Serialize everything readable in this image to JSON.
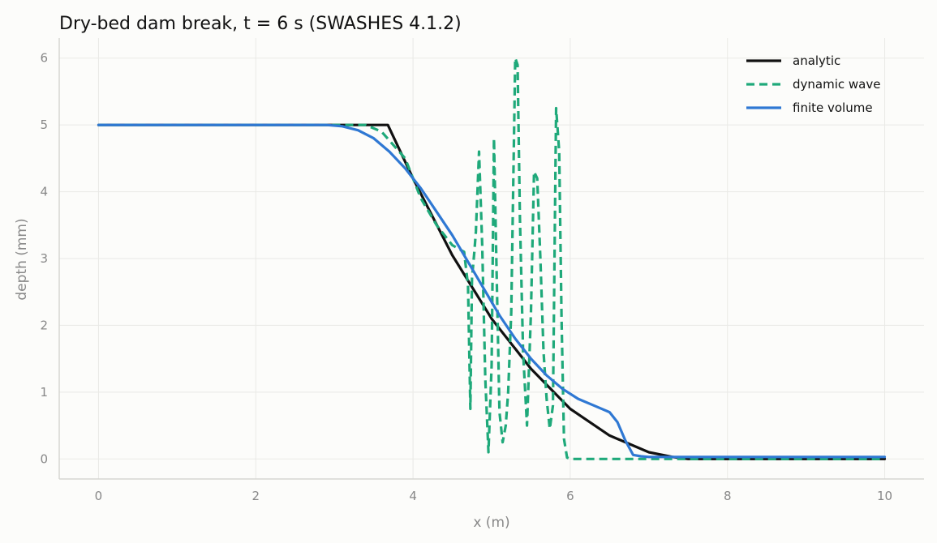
{
  "chart_data": {
    "type": "line",
    "title": "Dry-bed dam break, t = 6 s (SWASHES 4.1.2)",
    "xlabel": "x (m)",
    "ylabel": "depth (mm)",
    "xlim": [
      -0.5,
      10.5
    ],
    "ylim": [
      -0.3,
      6.3
    ],
    "xticks": [
      "0",
      "2",
      "4",
      "6",
      "8",
      "10"
    ],
    "yticks": [
      "0",
      "1",
      "2",
      "3",
      "4",
      "5",
      "6"
    ],
    "grid": true,
    "legend_position": "top-right",
    "colors": {
      "analytic": "#111111",
      "dynamic": "#1fa97a",
      "fv": "#2f78d3",
      "grid": "#e9e9e6",
      "axis": "#d6d6d2"
    },
    "series": [
      {
        "name": "analytic",
        "style": "solid",
        "x": [
          0,
          3.0,
          3.68,
          4.0,
          4.5,
          5.0,
          5.5,
          6.0,
          6.5,
          7.0,
          7.3,
          7.5,
          10
        ],
        "y": [
          5,
          5,
          5,
          4.2,
          3.05,
          2.1,
          1.35,
          0.75,
          0.35,
          0.1,
          0.03,
          0.0,
          0.0
        ]
      },
      {
        "name": "dynamic wave",
        "style": "dashed",
        "x": [
          0,
          3.0,
          3.4,
          3.6,
          3.75,
          3.9,
          4.1,
          4.3,
          4.5,
          4.65,
          4.7,
          4.73,
          4.75,
          4.78,
          4.8,
          4.84,
          4.88,
          4.92,
          4.96,
          5.0,
          5.03,
          5.06,
          5.1,
          5.14,
          5.18,
          5.21,
          5.25,
          5.3,
          5.33,
          5.36,
          5.4,
          5.45,
          5.5,
          5.54,
          5.58,
          5.62,
          5.66,
          5.7,
          5.74,
          5.78,
          5.82,
          5.86,
          5.89,
          5.92,
          5.96,
          6.0,
          10
        ],
        "y": [
          5,
          5,
          5,
          4.9,
          4.7,
          4.5,
          3.9,
          3.5,
          3.2,
          3.1,
          2.6,
          0.75,
          2.7,
          3.1,
          3.4,
          4.6,
          3.2,
          1.2,
          0.1,
          1.4,
          4.8,
          3.0,
          0.7,
          0.25,
          0.5,
          1.0,
          2.2,
          6.0,
          5.9,
          3.6,
          1.6,
          0.5,
          2.2,
          4.3,
          4.2,
          3.0,
          1.6,
          0.9,
          0.45,
          0.8,
          5.25,
          4.6,
          2.1,
          0.3,
          0.02,
          0.0,
          0.0
        ]
      },
      {
        "name": "finite volume",
        "style": "solid",
        "x": [
          0,
          2.9,
          3.1,
          3.3,
          3.5,
          3.7,
          3.9,
          4.1,
          4.3,
          4.5,
          4.7,
          4.9,
          5.1,
          5.3,
          5.5,
          5.7,
          5.9,
          6.1,
          6.3,
          6.5,
          6.6,
          6.7,
          6.8,
          6.9,
          7.0,
          10
        ],
        "y": [
          5,
          5,
          4.98,
          4.92,
          4.8,
          4.6,
          4.35,
          4.05,
          3.7,
          3.35,
          2.95,
          2.55,
          2.15,
          1.8,
          1.5,
          1.25,
          1.05,
          0.9,
          0.8,
          0.7,
          0.55,
          0.28,
          0.06,
          0.04,
          0.03,
          0.03
        ]
      }
    ]
  }
}
